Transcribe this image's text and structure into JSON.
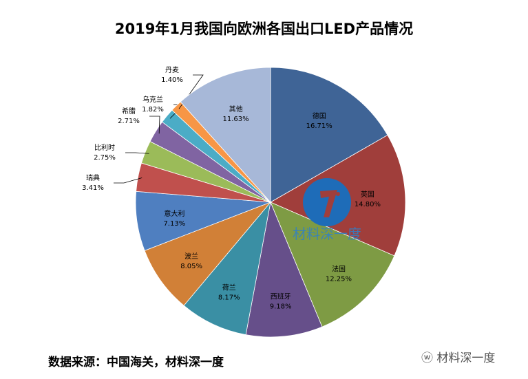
{
  "chart_data": {
    "type": "pie",
    "title": "2019年1月我国向欧洲各国出口LED产品情况",
    "start": "12 o'clock, clockwise",
    "slices": [
      {
        "label": "德国",
        "value": 16.71,
        "text": "16.71%",
        "color": "#3f6496"
      },
      {
        "label": "英国",
        "value": 14.8,
        "text": "14.80%",
        "color": "#a03e3b"
      },
      {
        "label": "法国",
        "value": 12.25,
        "text": "12.25%",
        "color": "#7e9b44"
      },
      {
        "label": "西班牙",
        "value": 9.18,
        "text": "9.18%",
        "color": "#664f8a"
      },
      {
        "label": "荷兰",
        "value": 8.17,
        "text": "8.17%",
        "color": "#3a8fa4"
      },
      {
        "label": "波兰",
        "value": 8.05,
        "text": "8.05%",
        "color": "#d18037"
      },
      {
        "label": "意大利",
        "value": 7.13,
        "text": "7.13%",
        "color": "#4f7fc0"
      },
      {
        "label": "瑞典",
        "value": 3.41,
        "text": "3.41%",
        "color": "#c0504d"
      },
      {
        "label": "比利时",
        "value": 2.75,
        "text": "2.75%",
        "color": "#9bbb59"
      },
      {
        "label": "希腊",
        "value": 2.71,
        "text": "2.71%",
        "color": "#8064a2"
      },
      {
        "label": "乌克兰",
        "value": 1.82,
        "text": "1.82%",
        "color": "#4bacc6"
      },
      {
        "label": "丹麦",
        "value": 1.4,
        "text": "1.40%",
        "color": "#f79646"
      },
      {
        "label": "其他",
        "value": 11.63,
        "text": "11.63%",
        "color": "#a7b8d8"
      }
    ]
  },
  "source": "数据来源：中国海关，材料深一度",
  "watermark": "材料深一度",
  "wechat_label": "材料深一度"
}
